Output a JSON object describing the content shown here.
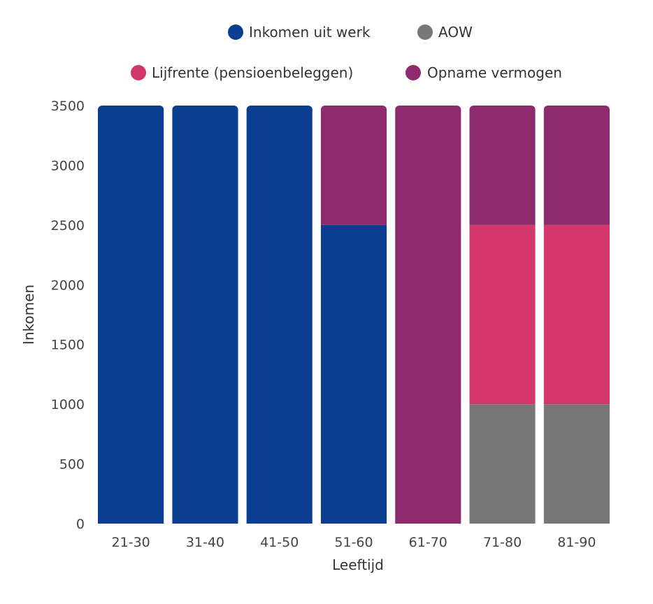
{
  "chart_data": {
    "type": "bar",
    "stacked": true,
    "categories": [
      "21-30",
      "31-40",
      "41-50",
      "51-60",
      "61-70",
      "71-80",
      "81-90"
    ],
    "series": [
      {
        "name": "Inkomen uit werk",
        "color": "#0b3d91",
        "values": [
          3500,
          3500,
          3500,
          2500,
          0,
          0,
          0
        ]
      },
      {
        "name": "AOW",
        "color": "#777777",
        "values": [
          0,
          0,
          0,
          0,
          0,
          1000,
          1000
        ]
      },
      {
        "name": "Lijfrente (pensioenbeleggen)",
        "color": "#d3366b",
        "values": [
          0,
          0,
          0,
          0,
          0,
          1500,
          1500
        ]
      },
      {
        "name": "Opname vermogen",
        "color": "#8e2a6e",
        "values": [
          0,
          0,
          0,
          1000,
          3500,
          1000,
          1000
        ]
      }
    ],
    "xlabel": "Leeftijd",
    "ylabel": "Inkomen",
    "ylim": [
      0,
      3500
    ],
    "yticks": [
      0,
      500,
      1000,
      1500,
      2000,
      2500,
      3000,
      3500
    ],
    "legend_position": "top",
    "grid": false
  }
}
